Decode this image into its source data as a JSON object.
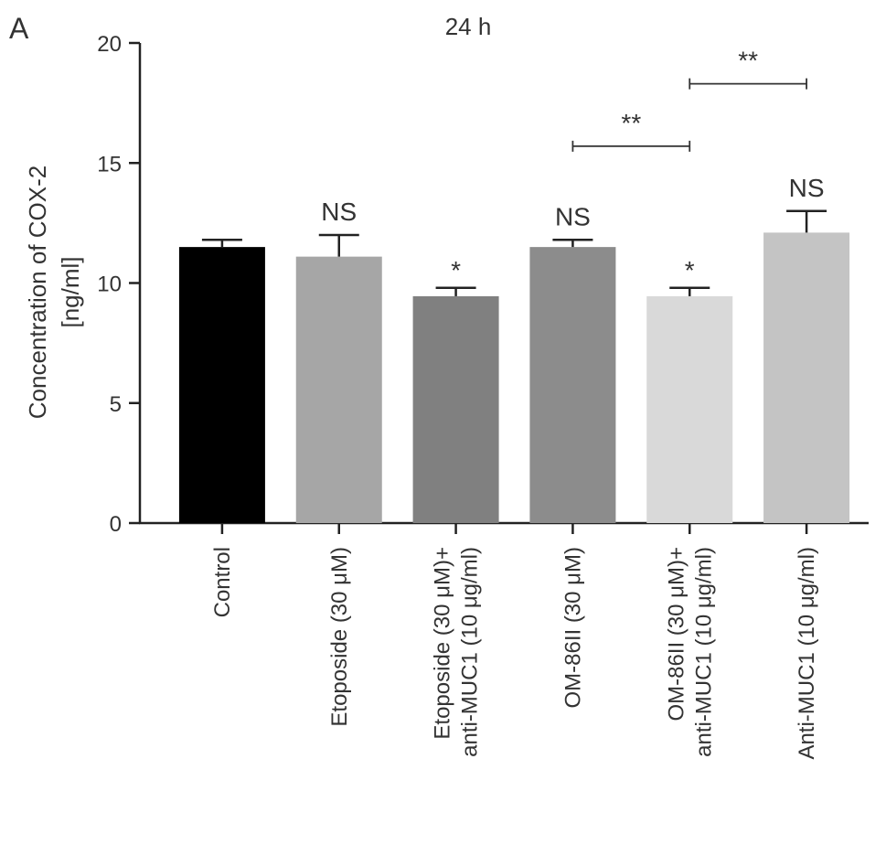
{
  "panel_label": "A",
  "chart_data": {
    "type": "bar",
    "title": "24 h",
    "ylabel_lines": [
      "Concentration of COX-2",
      "[ng/ml]"
    ],
    "xlabel": "",
    "ylim": [
      0,
      20
    ],
    "yticks": [
      0,
      5,
      10,
      15,
      20
    ],
    "grid": false,
    "categories": [
      [
        "Control"
      ],
      [
        "Etoposide (30 μM)"
      ],
      [
        "Etoposide (30 μM)+",
        "anti-MUC1 (10 μg/ml)"
      ],
      [
        "OM-86II (30 μM)"
      ],
      [
        "OM-86II (30 μM)+",
        "anti-MUC1 (10 μg/ml)"
      ],
      [
        "Anti-MUC1 (10 μg/ml)"
      ]
    ],
    "values": [
      11.5,
      11.1,
      9.45,
      11.5,
      9.45,
      12.1
    ],
    "errors": [
      0.3,
      0.9,
      0.35,
      0.3,
      0.35,
      0.9
    ],
    "colors": [
      "#000000",
      "#a6a6a6",
      "#808080",
      "#8c8c8c",
      "#d9d9d9",
      "#c4c4c4"
    ],
    "annotations": [
      "",
      "NS",
      "*",
      "NS",
      "*",
      "NS"
    ],
    "comparisons": [
      {
        "from": 3,
        "to": 4,
        "label": "**",
        "y": 15.7
      },
      {
        "from": 4,
        "to": 5,
        "label": "**",
        "y": 18.3
      }
    ]
  }
}
